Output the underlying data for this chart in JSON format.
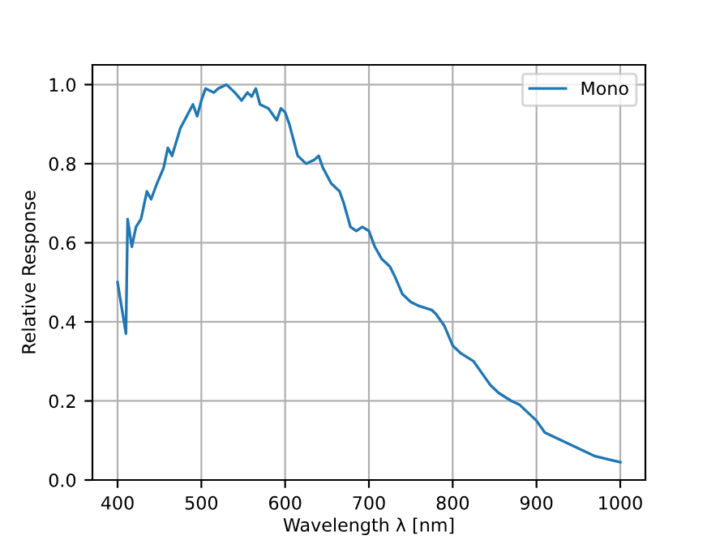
{
  "chart_data": {
    "type": "line",
    "xlabel": "Wavelength λ [nm]",
    "ylabel": "Relative Response",
    "xlim": [
      370,
      1030
    ],
    "ylim": [
      0,
      1.05
    ],
    "xticks": [
      400,
      500,
      600,
      700,
      800,
      900,
      1000
    ],
    "yticks": [
      {
        "value": 0,
        "label": "0.0"
      },
      0.2,
      0.4,
      0.6,
      0.8,
      {
        "value": 1,
        "label": "1.0"
      }
    ],
    "grid": true,
    "legend": "top right",
    "series": [
      {
        "name": "Mono",
        "color": "#1f77b4",
        "x": [
          400,
          410,
          412,
          417,
          422,
          428,
          435,
          440,
          447,
          455,
          460,
          465,
          475,
          485,
          490,
          495,
          500,
          505,
          515,
          520,
          530,
          540,
          548,
          555,
          560,
          565,
          570,
          580,
          590,
          595,
          600,
          605,
          615,
          625,
          635,
          640,
          645,
          655,
          665,
          670,
          678,
          685,
          692,
          700,
          707,
          715,
          725,
          732,
          740,
          750,
          760,
          775,
          780,
          790,
          800,
          810,
          825,
          835,
          845,
          855,
          870,
          880,
          890,
          900,
          910,
          930,
          950,
          970,
          990,
          1000
        ],
        "values": [
          0.5,
          0.37,
          0.66,
          0.59,
          0.64,
          0.66,
          0.73,
          0.71,
          0.75,
          0.79,
          0.84,
          0.82,
          0.89,
          0.93,
          0.95,
          0.92,
          0.96,
          0.99,
          0.98,
          0.99,
          1.0,
          0.98,
          0.96,
          0.98,
          0.97,
          0.99,
          0.95,
          0.94,
          0.91,
          0.94,
          0.93,
          0.9,
          0.82,
          0.8,
          0.81,
          0.82,
          0.79,
          0.75,
          0.73,
          0.7,
          0.64,
          0.63,
          0.64,
          0.63,
          0.59,
          0.56,
          0.54,
          0.51,
          0.47,
          0.45,
          0.44,
          0.43,
          0.42,
          0.39,
          0.34,
          0.32,
          0.3,
          0.27,
          0.24,
          0.22,
          0.2,
          0.19,
          0.17,
          0.15,
          0.12,
          0.1,
          0.08,
          0.06,
          0.05,
          0.045
        ]
      }
    ]
  }
}
